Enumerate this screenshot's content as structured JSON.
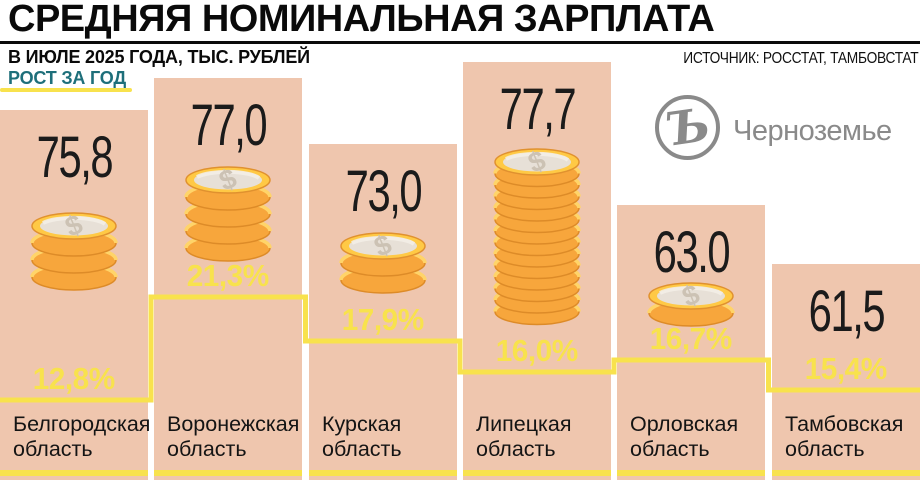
{
  "header": {
    "title": "СРЕДНЯЯ НОМИНАЛЬНАЯ ЗАРПЛАТА",
    "subtitle": "В ИЮЛЕ 2025 ГОДА, ТЫС. РУБЛЕЙ",
    "legend_growth": "РОСТ ЗА ГОД",
    "source": "ИСТОЧНИК: РОССТАТ, ТАМБОВСТАТ"
  },
  "branding": {
    "logo_glyph": "Ъ",
    "logo_text": "Черноземье"
  },
  "colors": {
    "bar": "#EFC6AE",
    "accent_yellow": "#F8E24D",
    "teal": "#1E6F7A",
    "logo_gray": "#8A8A8A"
  },
  "chart_data": {
    "type": "bar",
    "title": "СРЕДНЯЯ НОМИНАЛЬНАЯ ЗАРПЛАТА",
    "subtitle": "В ИЮЛЕ 2025 ГОДА, ТЫС. РУБЛЕЙ",
    "unit": "тыс. рублей",
    "grid": false,
    "legend_position": "top-left",
    "categories": [
      "Белгородская область",
      "Воронежская область",
      "Курская область",
      "Липецкая область",
      "Орловская область",
      "Тамбовская область"
    ],
    "series": [
      {
        "name": "Средняя номинальная зарплата в июле 2025 года, тыс. рублей",
        "type": "bar",
        "values": [
          75.8,
          77.0,
          73.0,
          77.7,
          63.0,
          61.5
        ],
        "labels": [
          "75,8",
          "77,0",
          "73,0",
          "77,7",
          "63.0",
          "61,5"
        ]
      },
      {
        "name": "Рост за год, %",
        "type": "step-line",
        "values": [
          12.8,
          21.3,
          17.9,
          16.0,
          16.7,
          15.4
        ],
        "labels": [
          "12,8%",
          "21,3%",
          "17,9%",
          "16,0%",
          "16,7%",
          "15,4%"
        ]
      }
    ],
    "coin_stack_sizes": [
      3,
      4,
      2,
      13,
      1,
      0
    ],
    "source": "ИСТОЧНИК: РОССТАТ, ТАМБОВСТАТ"
  }
}
